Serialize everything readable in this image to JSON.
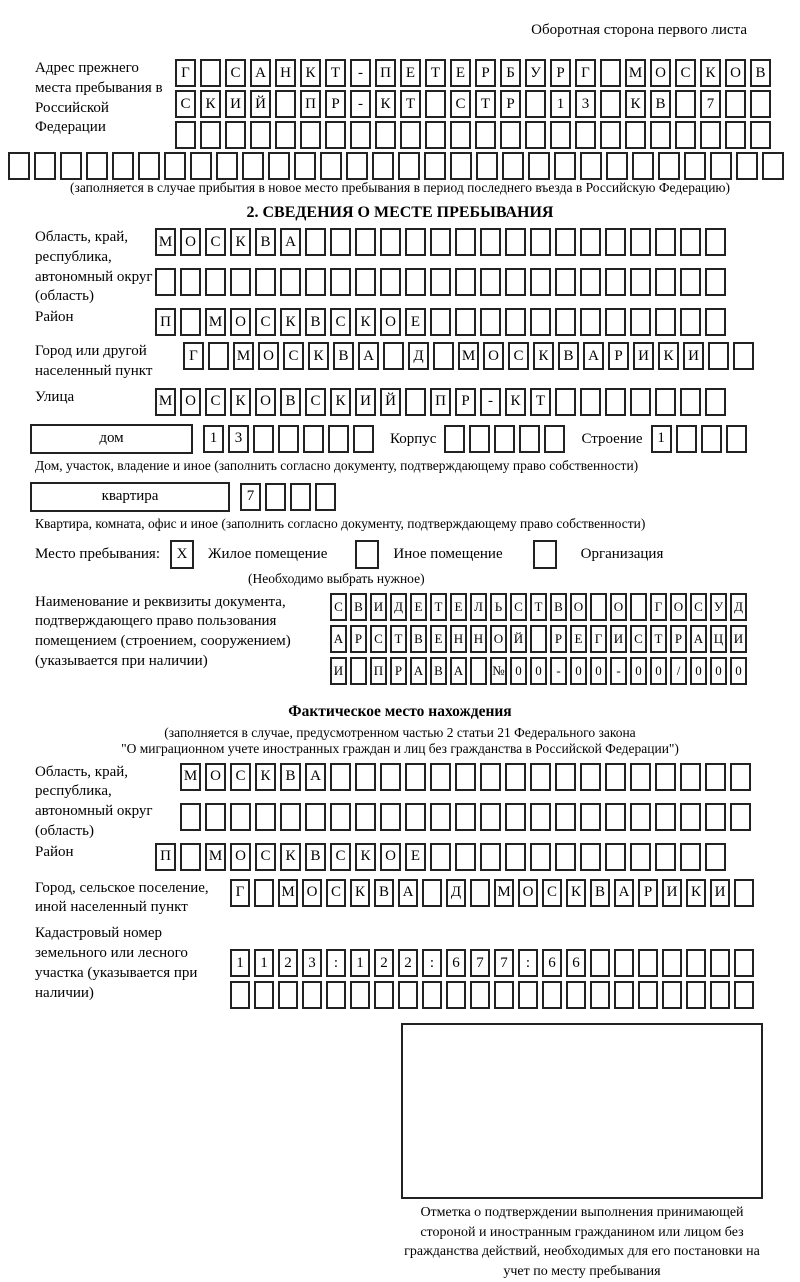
{
  "header": {
    "note": "Оборотная сторона первого листа"
  },
  "prev_address": {
    "label": "Адрес прежнего места пребывания в Российской Федерации",
    "rows": [
      {
        "chars": "Г САНКТ-ПЕТЕРБУРГ МОСКОВ",
        "count": 24
      },
      {
        "chars": "СКИЙ ПР-КТ СТР 13 КВ 7",
        "count": 24
      },
      {
        "chars": "",
        "count": 24
      }
    ],
    "overflow_row": {
      "chars": "",
      "count": 30
    },
    "note": "(заполняется в случае прибытия в новое место пребывания в период последнего въезда в Российскую Федерацию)"
  },
  "section2": {
    "title": "2. СВЕДЕНИЯ О МЕСТЕ ПРЕБЫВАНИЯ",
    "oblast": {
      "label": "Область, край, республика, автономный округ (область)",
      "rows": [
        {
          "chars": "МОСКВА",
          "count": 23
        },
        {
          "chars": "",
          "count": 23
        }
      ]
    },
    "rayon": {
      "label": "Район",
      "row": {
        "chars": "П МОСКВСКОЕ",
        "count": 23
      }
    },
    "gorod": {
      "label": "Город или другой населенный пункт",
      "row": {
        "chars": "Г МОСКВА Д МОСКВАРИКИ",
        "count": 23
      }
    },
    "ulitsa": {
      "label": "Улица",
      "row": {
        "chars": "МОСКОВСКИЙ ПР-КТ",
        "count": 23
      }
    },
    "dom": {
      "box_label": "дом",
      "row": {
        "chars": "13",
        "count": 7
      },
      "korpus_label": "Корпус",
      "korpus_row": {
        "chars": "",
        "count": 5
      },
      "stroenie_label": "Строение",
      "stroenie_row": {
        "chars": "1",
        "count": 4
      },
      "caption": "Дом, участок, владение и иное (заполнить согласно документу, подтверждающему право собственности)"
    },
    "kvartira": {
      "box_label": "квартира",
      "row": {
        "chars": "7",
        "count": 4
      },
      "caption": "Квартира, комната, офис и иное (заполнить согласно документу, подтверждающему право собственности)"
    },
    "mesto": {
      "label": "Место пребывания:",
      "options": [
        {
          "label": "Жилое помещение",
          "mark": "X"
        },
        {
          "label": "Иное помещение",
          "mark": ""
        },
        {
          "label": "Организация",
          "mark": ""
        }
      ],
      "note": "(Необходимо выбрать нужное)"
    },
    "doc": {
      "label": "Наименование и реквизиты документа, подтверждающего право пользования помещением (строением, сооружением) (указывается при наличии)",
      "rows": [
        {
          "chars": "СВИДЕТЕЛЬСТВО О ГОСУД",
          "count": 21
        },
        {
          "chars": "АРСТВЕННОЙ РЕГИСТРАЦИ",
          "count": 21
        },
        {
          "chars": "И ПРАВА №00-00-00/000",
          "count": 21
        }
      ]
    }
  },
  "fact": {
    "title": "Фактическое место нахождения",
    "note1": "(заполняется в случае, предусмотренном частью 2 статьи 21 Федерального закона",
    "note2": "\"О миграционном учете иностранных граждан и лиц без гражданства в Российской Федерации\")",
    "oblast": {
      "label": "Область, край, республика, автономный округ (область)",
      "rows": [
        {
          "chars": "МОСКВА",
          "count": 23
        },
        {
          "chars": "",
          "count": 23
        }
      ]
    },
    "rayon": {
      "label": "Район",
      "row": {
        "chars": "П МОСКВСКОЕ",
        "count": 23
      }
    },
    "gorod": {
      "label": "Город, сельское поселение, иной населенный пункт",
      "row": {
        "chars": "Г МОСКВА Д МОСКВАРИКИ",
        "count": 22
      }
    },
    "kadastr": {
      "label": "Кадастровый номер земельного или лесного участка (указывается при наличии)",
      "rows": [
        {
          "chars": "1123:122:677:66",
          "count": 22
        },
        {
          "chars": "",
          "count": 22
        }
      ]
    },
    "stamp_caption": "Отметка о подтверждении выполнения принимающей стороной и иностранным гражданином или лицом без гражданства действий, необходимых для его постановки на учет по месту пребывания"
  }
}
